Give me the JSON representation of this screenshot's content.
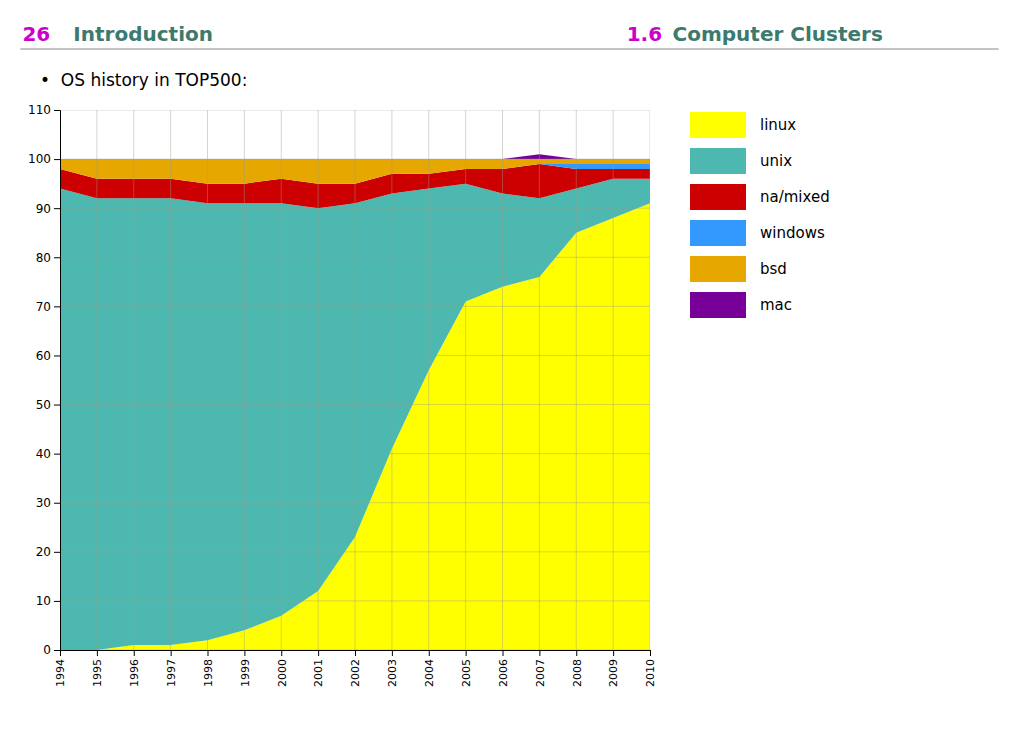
{
  "chart_data": {
    "type": "area",
    "stacked": true,
    "title": "•  OS history in TOP500:",
    "annotations": [
      {
        "text": "26",
        "color": "#cc00cc"
      },
      {
        "text": "Introduction",
        "color": "#3d7a6e"
      },
      {
        "text": "1.6",
        "color": "#cc00cc"
      },
      {
        "text": "Computer Clusters",
        "color": "#3d7a6e"
      }
    ],
    "x": [
      1994,
      1995,
      1996,
      1997,
      1998,
      1999,
      2000,
      2001,
      2002,
      2003,
      2004,
      2005,
      2006,
      2007,
      2008,
      2009,
      2010
    ],
    "series": [
      {
        "name": "linux",
        "color": "#ffff00",
        "values": [
          0,
          0,
          1,
          1,
          2,
          4,
          7,
          12,
          23,
          41,
          57,
          71,
          74,
          76,
          85,
          88,
          91
        ]
      },
      {
        "name": "unix",
        "color": "#4db8b0",
        "values": [
          94,
          92,
          91,
          91,
          89,
          87,
          84,
          78,
          68,
          52,
          37,
          24,
          19,
          16,
          9,
          8,
          5
        ]
      },
      {
        "name": "na/mixed",
        "color": "#cc0000",
        "values": [
          4,
          4,
          4,
          4,
          4,
          4,
          5,
          5,
          4,
          4,
          3,
          3,
          5,
          7,
          4,
          2,
          2
        ]
      },
      {
        "name": "windows",
        "color": "#3399ff",
        "values": [
          0,
          0,
          0,
          0,
          0,
          0,
          0,
          0,
          0,
          0,
          0,
          0,
          0,
          0,
          1,
          1,
          1
        ]
      },
      {
        "name": "bsd",
        "color": "#e6a800",
        "values": [
          2,
          4,
          4,
          4,
          5,
          5,
          4,
          5,
          5,
          3,
          3,
          2,
          2,
          1,
          1,
          1,
          1
        ]
      },
      {
        "name": "mac",
        "color": "#770099",
        "values": [
          0,
          0,
          0,
          0,
          0,
          0,
          0,
          0,
          0,
          0,
          0,
          0,
          0,
          1,
          0,
          0,
          0
        ]
      }
    ],
    "xlim": [
      1994,
      2010
    ],
    "xticks": [
      1994,
      1995,
      1996,
      1997,
      1998,
      1999,
      2000,
      2001,
      2002,
      2003,
      2004,
      2005,
      2006,
      2007,
      2008,
      2009,
      2010
    ],
    "ylim": [
      0,
      110
    ],
    "yticks": [
      0,
      10,
      20,
      30,
      40,
      50,
      60,
      70,
      80,
      90,
      100,
      110
    ],
    "grid": true,
    "legend": "right"
  }
}
